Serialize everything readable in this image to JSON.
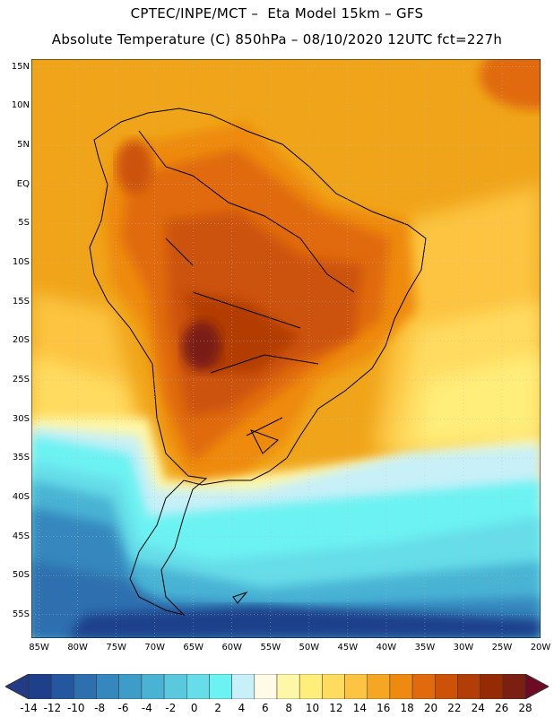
{
  "header": {
    "line1": "CPTEC/INPE/MCT –  Eta Model 15km – GFS",
    "line2": "Absolute Temperature (C) 850hPa – 08/10/2020 12UTC fct=227h"
  },
  "map": {
    "region": "South America",
    "lat_range": [
      -58,
      16
    ],
    "lon_range": [
      -86,
      -20
    ],
    "lat_labels": [
      "15N",
      "10N",
      "5N",
      "EQ",
      "5S",
      "10S",
      "15S",
      "20S",
      "25S",
      "30S",
      "35S",
      "40S",
      "45S",
      "50S",
      "55S"
    ],
    "lat_values": [
      15,
      10,
      5,
      0,
      -5,
      -10,
      -15,
      -20,
      -25,
      -30,
      -35,
      -40,
      -45,
      -50,
      -55
    ],
    "lon_labels": [
      "85W",
      "80W",
      "75W",
      "70W",
      "65W",
      "60W",
      "55W",
      "50W",
      "45W",
      "40W",
      "35W",
      "30W",
      "25W",
      "20W"
    ],
    "lon_values": [
      -85,
      -80,
      -75,
      -70,
      -65,
      -60,
      -55,
      -50,
      -45,
      -40,
      -35,
      -30,
      -25,
      -20
    ],
    "gridlines": true
  },
  "colorbar": {
    "labels": [
      "-14",
      "-12",
      "-10",
      "-8",
      "-6",
      "-4",
      "-2",
      "0",
      "2",
      "4",
      "6",
      "8",
      "10",
      "12",
      "14",
      "16",
      "18",
      "20",
      "22",
      "24",
      "26",
      "28"
    ],
    "colors": [
      "#1e3f8a",
      "#2557a0",
      "#2d6faf",
      "#3587bd",
      "#3e9dc8",
      "#4ab3d4",
      "#5ac8dd",
      "#66dde8",
      "#6cf2f2",
      "#c8f0f8",
      "#fffbe6",
      "#fff7a8",
      "#ffee7a",
      "#ffdc60",
      "#fcc440",
      "#f5a623",
      "#ee8a10",
      "#e06a0c",
      "#cc5208",
      "#b33d06",
      "#952b05",
      "#7a1f12"
    ],
    "under_color": "#233b85",
    "over_color": "#6e0a24"
  }
}
